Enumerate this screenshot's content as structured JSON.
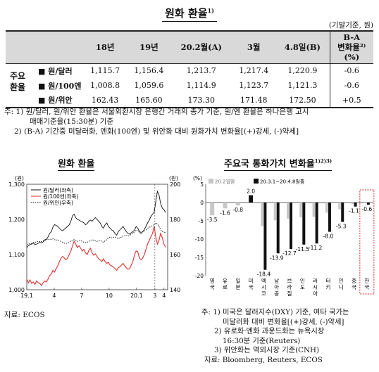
{
  "title": "원화 환율",
  "title_sup": "1)",
  "unit_note": "(기말기준, 원)",
  "table": {
    "headers": [
      "18년",
      "19년",
      "20.2월(A)",
      "3월",
      "4.8일(B)",
      "B-A\n변화율²⁾(%)"
    ],
    "group_label": "주요\n환율",
    "rows": [
      {
        "label": "■ 원/달러",
        "values": [
          "1,115.7",
          "1,156.4",
          "1,213.7",
          "1,217.4",
          "1,220.9",
          "-0.6"
        ]
      },
      {
        "label": "■ 원/100엔",
        "values": [
          "1,008.8",
          "1,059.6",
          "1,114.9",
          "1,123.7",
          "1,121.3",
          "-0.6"
        ]
      },
      {
        "label": "■ 원/위안",
        "values": [
          "162.43",
          "165.60",
          "173.30",
          "171.48",
          "172.50",
          "+0.5"
        ]
      }
    ]
  },
  "notes": [
    "주: 1) 원/달러, 원/위안 환율은 서울외환시장 은행간 거래의 종가 기준, 원/엔 환율은 하나은행 고시",
    "매매기준율(15:30분) 기준",
    "2) (B-A) 기간중 미달러화, 엔화(100엔) 및 위안화 대비 원화가치 변화율[(+)강세, (-)약세]"
  ],
  "left_chart": {
    "title": "원화 환율",
    "unit_left": "(원)",
    "unit_right": "(원)",
    "source": "자료: ECOS"
  },
  "right_chart": {
    "title": "주요국 통화가치 변화율",
    "title_sup": "1)2)3)",
    "unit": "(%)"
  },
  "right_notes": [
    "주:  1) 미국은 달러지수(DXY) 기준, 여타 국가는",
    "미달러화 대비 변화율[(+)강세, (-)약세]",
    "2) 유로화·엔화 과운드화는 뉴욕시장",
    "16:30분   기준(Reuters)",
    "3) 위안화는 역외시장 기준(CNH)",
    "자료: Bloomberg, Reuters, ECOS"
  ],
  "colors": {
    "usd": "#111111",
    "jpy": "#e03030",
    "cny": "#111111",
    "bar_2020": "#111111",
    "bar_2020_2": "#c8c8c8",
    "highlight": "#d62020"
  },
  "chart_data": [
    {
      "type": "line",
      "x_ticks": [
        "19.1",
        "4",
        "7",
        "10",
        "20.1",
        "3",
        "4"
      ],
      "ylim_left": [
        1000,
        1300
      ],
      "yticks_left": [
        "1,000",
        "1,100",
        "1,200",
        "1,300"
      ],
      "ylim_right": [
        140,
        200
      ],
      "yticks_right": [
        "140",
        "160",
        "180",
        "200"
      ],
      "series": [
        {
          "name": "원/달러(좌축)",
          "axis": "left",
          "style": "solid",
          "color": "#111111",
          "values": [
            1120,
            1125,
            1128,
            1130,
            1133,
            1128,
            1130,
            1132,
            1135,
            1133,
            1136,
            1140,
            1143,
            1150,
            1160,
            1165,
            1178,
            1185,
            1183,
            1180,
            1175,
            1170,
            1168,
            1172,
            1176,
            1180,
            1185,
            1195,
            1210,
            1215,
            1205,
            1200,
            1198,
            1195,
            1193,
            1190,
            1185,
            1188,
            1195,
            1198,
            1195,
            1200,
            1205,
            1200,
            1195,
            1190,
            1180,
            1175,
            1185,
            1190,
            1180,
            1175,
            1170,
            1168,
            1160,
            1155,
            1165,
            1170,
            1175,
            1180,
            1172,
            1165,
            1160,
            1158,
            1162,
            1165,
            1170,
            1180,
            1175,
            1165,
            1160,
            1165,
            1172,
            1180,
            1190,
            1198,
            1208,
            1215,
            1220,
            1250,
            1280,
            1270,
            1245,
            1232,
            1228,
            1220
          ]
        },
        {
          "name": "원/100엔(좌축)",
          "axis": "left",
          "style": "solid",
          "color": "#e03030",
          "values": [
            1030,
            1020,
            1028,
            1018,
            1022,
            1015,
            1025,
            1020,
            1018,
            1012,
            1020,
            1025,
            1022,
            1030,
            1040,
            1045,
            1055,
            1050,
            1060,
            1068,
            1080,
            1090,
            1095,
            1090,
            1085,
            1090,
            1100,
            1110,
            1125,
            1138,
            1130,
            1120,
            1125,
            1118,
            1110,
            1115,
            1105,
            1100,
            1112,
            1118,
            1105,
            1098,
            1102,
            1095,
            1088,
            1085,
            1080,
            1088,
            1080,
            1075,
            1078,
            1070,
            1068,
            1065,
            1060,
            1055,
            1062,
            1065,
            1070,
            1075,
            1068,
            1062,
            1058,
            1060,
            1070,
            1080,
            1100,
            1110,
            1108,
            1090,
            1085,
            1090,
            1100,
            1115,
            1130,
            1140,
            1150,
            1160,
            1180,
            1150,
            1130,
            1140,
            1160,
            1148,
            1130,
            1121
          ]
        },
        {
          "name": "원/위안(우축)",
          "axis": "right",
          "style": "dotted",
          "color": "#111111",
          "values": [
            165.6,
            166,
            166.2,
            166.4,
            166.8,
            167,
            167.2,
            167.5,
            167.3,
            167.4,
            167.8,
            168.5,
            169,
            168.5,
            168.8,
            168.6,
            169,
            168.5,
            168.2,
            168.5,
            167.8,
            167.5,
            167,
            166.5,
            166.3,
            166.5,
            167,
            167.5,
            168,
            168.5,
            168,
            167.5,
            167.8,
            168,
            167.5,
            167,
            166.8,
            167,
            167.5,
            168,
            168.5,
            168.2,
            167.8,
            167.5,
            167.8,
            168,
            167.5,
            167,
            167.8,
            168.5,
            169.5,
            170,
            169.5,
            169.8,
            170,
            169.5,
            169,
            169.5,
            170,
            170.5,
            170.8,
            171,
            170.5,
            170.8,
            171.5,
            172,
            173,
            174,
            173.5,
            173,
            172.8,
            173,
            173.3,
            174,
            175,
            175.5,
            176,
            176.5,
            177,
            178,
            177.5,
            176,
            174,
            173,
            172.8,
            172.5
          ]
        }
      ]
    },
    {
      "type": "bar",
      "categories": [
        "영국",
        "유로",
        "일본",
        "미국",
        "멕시코",
        "남아공",
        "브라질",
        "인도",
        "러시아",
        "터키",
        "인니",
        "중국",
        "한국"
      ],
      "series": [
        {
          "name": "20.2월말",
          "values": [
            -3.5,
            -1.6,
            -0.8,
            2.0,
            null,
            null,
            null,
            null,
            null,
            null,
            null,
            null,
            null
          ]
        },
        {
          "name": "20.3.1~20.4.8일중",
          "values": [
            null,
            null,
            null,
            null,
            -18.4,
            -13.9,
            -12.7,
            -11.5,
            -11.2,
            -8.0,
            -5.3,
            -1.1,
            -0.6
          ]
        }
      ],
      "data_labels": [
        "-3.5",
        "-1.6",
        "-0.8",
        "2.0",
        "-18.4",
        "-13.9",
        "-12.7",
        "-11.5",
        "-11.2",
        "-8.0",
        "-5.3",
        "-1.1",
        "-0.6"
      ],
      "ylim": [
        -20,
        5
      ],
      "yticks": [
        "5",
        "0",
        "-5",
        "-10",
        "-15",
        "-20"
      ],
      "legend": [
        "20.2월말",
        "20.3.1~20.4.8일중"
      ]
    }
  ]
}
